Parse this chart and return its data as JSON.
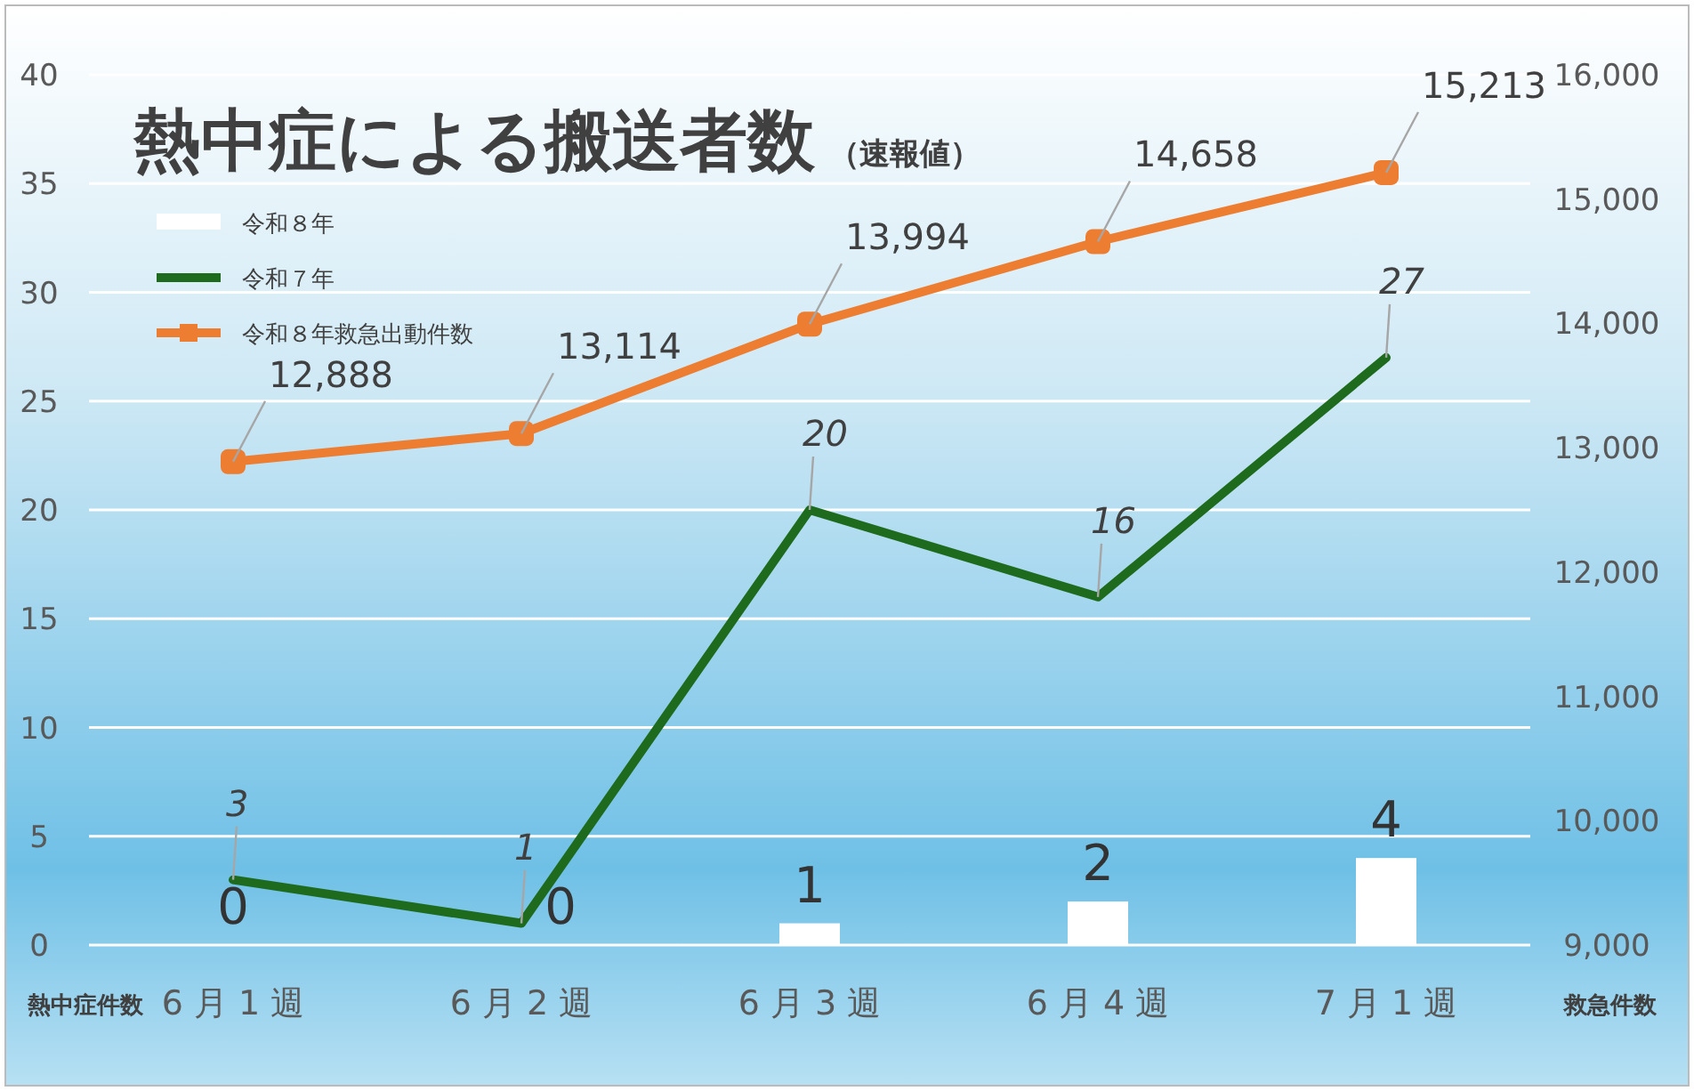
{
  "chart_data": {
    "type": "bar",
    "title": "熱中症による搬送者数",
    "subtitle": "（速報値）",
    "ylabel": "熱中症件数",
    "y2label": "救急件数",
    "categories": [
      "6 月 1 週",
      "6 月 2 週",
      "6 月 3 週",
      "6 月 4 週",
      "7 月 1 週"
    ],
    "series": [
      {
        "name": "令和８年",
        "color": "#ffffff",
        "values": [
          0,
          0,
          1,
          2,
          4
        ],
        "value_labels": [
          "0",
          "0",
          "1",
          "2",
          "4"
        ]
      },
      {
        "name": "令和７年",
        "type": "line",
        "color": "#1e6b1e",
        "values": [
          3,
          1,
          20,
          16,
          27
        ],
        "value_labels": [
          "3",
          "1",
          "20",
          "16",
          "27"
        ]
      },
      {
        "name": "令和８年救急出動件数",
        "type": "line",
        "axis": "y2",
        "color": "#ed7d31",
        "marker": "square",
        "values": [
          12888,
          13114,
          13994,
          14658,
          15213
        ],
        "value_labels": [
          "12,888",
          "13,114",
          "13,994",
          "14,658",
          "15,213"
        ]
      }
    ],
    "ylim": [
      0,
      40
    ],
    "yticks": [
      0,
      5,
      10,
      15,
      20,
      25,
      30,
      35,
      40
    ],
    "y2lim": [
      9000,
      16000
    ],
    "y2ticks": [
      {
        "value": 9000,
        "label": "9,000"
      },
      {
        "value": 10000,
        "label": "10,000"
      },
      {
        "value": 11000,
        "label": "11,000"
      },
      {
        "value": 12000,
        "label": "12,000"
      },
      {
        "value": 13000,
        "label": "13,000"
      },
      {
        "value": 14000,
        "label": "14,000"
      },
      {
        "value": 15000,
        "label": "15,000"
      },
      {
        "value": 16000,
        "label": "16,000"
      }
    ],
    "grid": "y",
    "legend": "top left"
  }
}
